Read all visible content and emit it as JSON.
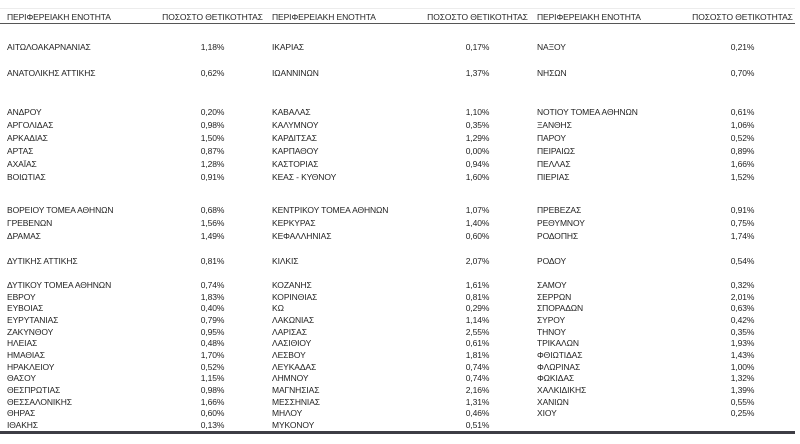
{
  "colors": {
    "background": "#ffffff",
    "text": "#1f1f1f",
    "header_rule": "#565656",
    "bottom_rule": "#3d3d45",
    "top_rule": "#ececec"
  },
  "table": {
    "column_headers": {
      "region": "ΠΕΡΙΦΕΡΕΙΑΚΗ ΕΝΟΤΗΤΑ",
      "positivity": "ΠΟΣΟΣΤΟ ΘΕΤΙΚΟΤΗΤΑΣ"
    },
    "groups": [
      [
        [
          "ΑΙΤΩΛΟΑΚΑΡΝΑΝΙΑΣ",
          "1,18%",
          "ΙΚΑΡΙΑΣ",
          "0,17%",
          "ΝΑΞΟΥ",
          "0,21%"
        ]
      ],
      [
        [
          "ΑΝΑΤΟΛΙΚΗΣ ΑΤΤΙΚΗΣ",
          "0,62%",
          "ΙΩΑΝΝΙΝΩΝ",
          "1,37%",
          "ΝΗΣΩΝ",
          "0,70%"
        ]
      ],
      [
        [
          "ΑΝΔΡΟΥ",
          "0,20%",
          "ΚΑΒΑΛΑΣ",
          "1,10%",
          "ΝΟΤΙΟΥ ΤΟΜΕΑ ΑΘΗΝΩΝ",
          "0,61%"
        ],
        [
          "ΑΡΓΟΛΙΔΑΣ",
          "0,98%",
          "ΚΑΛΥΜΝΟΥ",
          "0,35%",
          "ΞΑΝΘΗΣ",
          "1,06%"
        ],
        [
          "ΑΡΚΑΔΙΑΣ",
          "1,50%",
          "ΚΑΡΔΙΤΣΑΣ",
          "1,29%",
          "ΠΑΡΟΥ",
          "0,52%"
        ],
        [
          "ΑΡΤΑΣ",
          "0,87%",
          "ΚΑΡΠΑΘΟΥ",
          "0,00%",
          "ΠΕΙΡΑΙΩΣ",
          "0,89%"
        ],
        [
          "ΑΧΑΪΑΣ",
          "1,28%",
          "ΚΑΣΤΟΡΙΑΣ",
          "0,94%",
          "ΠΕΛΛΑΣ",
          "1,66%"
        ],
        [
          "ΒΟΙΩΤΙΑΣ",
          "0,91%",
          "ΚΕΑΣ - ΚΥΘΝΟΥ",
          "1,60%",
          "ΠΙΕΡΙΑΣ",
          "1,52%"
        ]
      ],
      [
        [
          "ΒΟΡΕΙΟΥ ΤΟΜΕΑ ΑΘΗΝΩΝ",
          "0,68%",
          "ΚΕΝΤΡΙΚΟΥ ΤΟΜΕΑ ΑΘΗΝΩΝ",
          "1,07%",
          "ΠΡΕΒΕΖΑΣ",
          "0,91%"
        ],
        [
          "ΓΡΕΒΕΝΩΝ",
          "1,56%",
          "ΚΕΡΚΥΡΑΣ",
          "1,40%",
          "ΡΕΘΥΜΝΟΥ",
          "0,75%"
        ],
        [
          "ΔΡΑΜΑΣ",
          "1,49%",
          "ΚΕΦΑΛΛΗΝΙΑΣ",
          "0,60%",
          "ΡΟΔΟΠΗΣ",
          "1,74%"
        ]
      ],
      [
        [
          "ΔΥΤΙΚΗΣ ΑΤΤΙΚΗΣ",
          "0,81%",
          "ΚΙΛΚΙΣ",
          "2,07%",
          "ΡΟΔΟΥ",
          "0,54%"
        ]
      ],
      [
        [
          "ΔΥΤΙΚΟΥ ΤΟΜΕΑ ΑΘΗΝΩΝ",
          "0,74%",
          "ΚΟΖΑΝΗΣ",
          "1,61%",
          "ΣΑΜΟΥ",
          "0,32%"
        ],
        [
          "ΕΒΡΟΥ",
          "1,83%",
          "ΚΟΡΙΝΘΙΑΣ",
          "0,81%",
          "ΣΕΡΡΩΝ",
          "2,01%"
        ],
        [
          "ΕΥΒΟΙΑΣ",
          "0,40%",
          "ΚΩ",
          "0,29%",
          "ΣΠΟΡΑΔΩΝ",
          "0,63%"
        ],
        [
          "ΕΥΡΥΤΑΝΙΑΣ",
          "0,79%",
          "ΛΑΚΩΝΙΑΣ",
          "1,14%",
          "ΣΥΡΟΥ",
          "0,42%"
        ],
        [
          "ΖΑΚΥΝΘΟΥ",
          "0,95%",
          "ΛΑΡΙΣΑΣ",
          "2,55%",
          "ΤΗΝΟΥ",
          "0,35%"
        ],
        [
          "ΗΛΕΙΑΣ",
          "0,48%",
          "ΛΑΣΙΘΙΟΥ",
          "0,61%",
          "ΤΡΙΚΑΛΩΝ",
          "1,93%"
        ],
        [
          "ΗΜΑΘΙΑΣ",
          "1,70%",
          "ΛΕΣΒΟΥ",
          "1,81%",
          "ΦΘΙΩΤΙΔΑΣ",
          "1,43%"
        ],
        [
          "ΗΡΑΚΛΕΙΟΥ",
          "0,52%",
          "ΛΕΥΚΑΔΑΣ",
          "0,74%",
          "ΦΛΩΡΙΝΑΣ",
          "1,00%"
        ],
        [
          "ΘΑΣΟΥ",
          "1,15%",
          "ΛΗΜΝΟΥ",
          "0,74%",
          "ΦΩΚΙΔΑΣ",
          "1,32%"
        ],
        [
          "ΘΕΣΠΡΩΤΙΑΣ",
          "0,98%",
          "ΜΑΓΝΗΣΙΑΣ",
          "2,16%",
          "ΧΑΛΚΙΔΙΚΗΣ",
          "1,39%"
        ],
        [
          "ΘΕΣΣΑΛΟΝΙΚΗΣ",
          "1,66%",
          "ΜΕΣΣΗΝΙΑΣ",
          "1,31%",
          "ΧΑΝΙΩΝ",
          "0,55%"
        ],
        [
          "ΘΗΡΑΣ",
          "0,60%",
          "ΜΗΛΟΥ",
          "0,46%",
          "ΧΙΟΥ",
          "0,25%"
        ],
        [
          "ΙΘΑΚΗΣ",
          "0,13%",
          "ΜΥΚΟΝΟΥ",
          "0,51%",
          "",
          ""
        ]
      ]
    ]
  }
}
